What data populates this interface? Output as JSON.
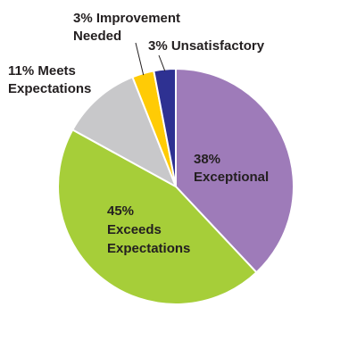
{
  "chart_data": {
    "type": "pie",
    "start_angle_deg": 0,
    "direction": "clockwise",
    "slices": [
      {
        "label": "Exceptional",
        "value": 38,
        "display": "38%",
        "color": "#9e7bb9"
      },
      {
        "label": "Exceeds Expectations",
        "value": 45,
        "display": "45%",
        "color": "#a6ce39"
      },
      {
        "label": "Meets Expectations",
        "value": 11,
        "display": "11%",
        "color": "#c8c8ca"
      },
      {
        "label": "Improvement Needed",
        "value": 3,
        "display": "3%",
        "color": "#ffcb05"
      },
      {
        "label": "Unsatisfactory",
        "value": 3,
        "display": "3%",
        "color": "#2e3192"
      }
    ],
    "label_text": {
      "exceptional": [
        "38%",
        "Exceptional"
      ],
      "exceeds": [
        "45%",
        "Exceeds",
        "Expectations"
      ],
      "meets": [
        "11% Meets",
        "Expectations"
      ],
      "improvement": [
        "3% Improvement",
        "Needed"
      ],
      "unsatisfactory": [
        "3% Unsatisfactory"
      ]
    }
  }
}
